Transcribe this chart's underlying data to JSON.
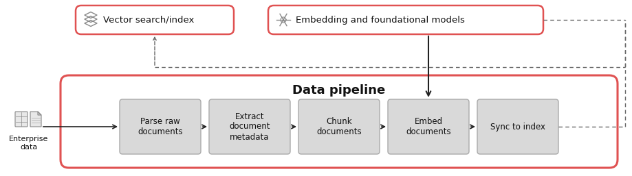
{
  "title": "Data pipeline",
  "bg_color": "#ffffff",
  "pipeline_border_color": "#e05252",
  "pipeline_fill": "#ffffff",
  "step_box_color": "#d9d9d9",
  "step_box_border": "#aaaaaa",
  "top_box_border": "#e05252",
  "top_box_bg": "#ffffff",
  "arrow_color": "#222222",
  "dashed_color": "#666666",
  "steps": [
    "Parse raw\ndocuments",
    "Extract\ndocument\nmetadata",
    "Chunk\ndocuments",
    "Embed\ndocuments",
    "Sync to index"
  ],
  "enterprise_label": "Enterprise\ndata",
  "figsize": [
    9.19,
    2.57
  ],
  "dpi": 100
}
